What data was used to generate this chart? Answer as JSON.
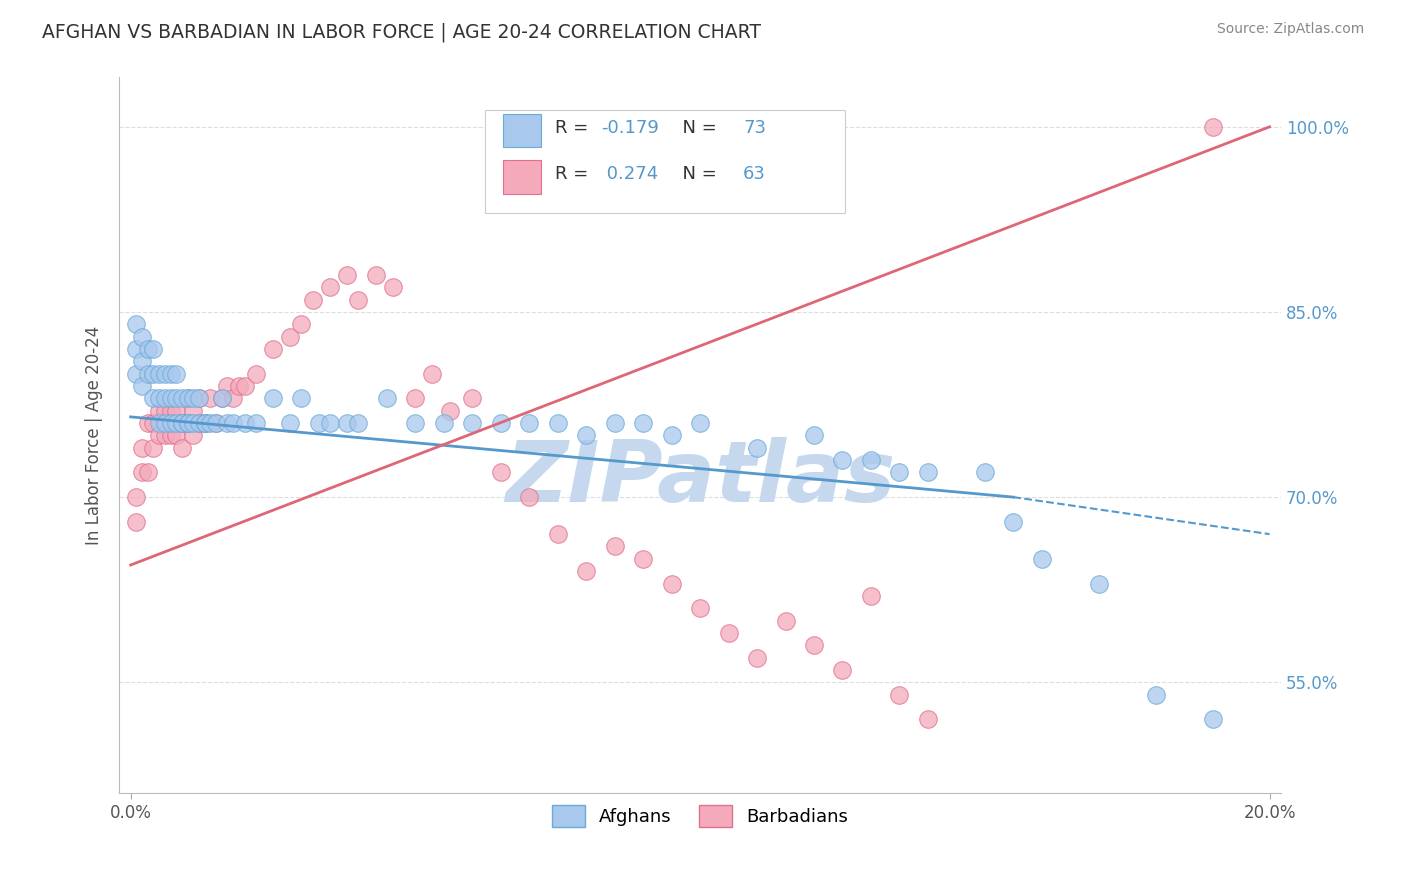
{
  "title": "AFGHAN VS BARBADIAN IN LABOR FORCE | AGE 20-24 CORRELATION CHART",
  "source": "Source: ZipAtlas.com",
  "ylabel": "In Labor Force | Age 20-24",
  "xlim": [
    -0.002,
    0.202
  ],
  "ylim": [
    0.46,
    1.04
  ],
  "xtick_positions": [
    0.0,
    0.2
  ],
  "xtick_labels": [
    "0.0%",
    "20.0%"
  ],
  "ytick_vals": [
    0.55,
    0.7,
    0.85,
    1.0
  ],
  "ytick_labels": [
    "55.0%",
    "70.0%",
    "85.0%",
    "100.0%"
  ],
  "R_afghan": -0.179,
  "N_afghan": 73,
  "R_barbadian": 0.274,
  "N_barbadian": 63,
  "afghan_fill": "#A8C8EE",
  "afghan_edge": "#6AAAD8",
  "barbadian_fill": "#F4AABB",
  "barbadian_edge": "#E07090",
  "line_afghan": "#5599CC",
  "line_barbadian": "#DD6677",
  "grid_color": "#DDDDDD",
  "title_color": "#333333",
  "source_color": "#888888",
  "ylabel_color": "#555555",
  "ytick_color": "#5599CC",
  "xtick_color": "#555555",
  "watermark": "ZIPatlas",
  "watermark_color": "#C5D8EE",
  "legend_text_color": "#333333",
  "legend_num_color": "#5599CC",
  "legend_box_edge": "#CCCCCC",
  "background": "#FFFFFF",
  "afghan_x": [
    0.001,
    0.001,
    0.001,
    0.002,
    0.002,
    0.002,
    0.003,
    0.003,
    0.004,
    0.004,
    0.004,
    0.005,
    0.005,
    0.005,
    0.006,
    0.006,
    0.006,
    0.007,
    0.007,
    0.007,
    0.008,
    0.008,
    0.008,
    0.009,
    0.009,
    0.009,
    0.01,
    0.01,
    0.01,
    0.011,
    0.011,
    0.012,
    0.012,
    0.013,
    0.013,
    0.014,
    0.015,
    0.016,
    0.017,
    0.018,
    0.02,
    0.022,
    0.025,
    0.028,
    0.03,
    0.033,
    0.035,
    0.038,
    0.04,
    0.045,
    0.05,
    0.055,
    0.06,
    0.065,
    0.07,
    0.075,
    0.08,
    0.085,
    0.09,
    0.095,
    0.1,
    0.11,
    0.12,
    0.125,
    0.13,
    0.135,
    0.14,
    0.15,
    0.155,
    0.16,
    0.17,
    0.18,
    0.19
  ],
  "afghan_y": [
    0.8,
    0.82,
    0.84,
    0.79,
    0.81,
    0.83,
    0.8,
    0.82,
    0.78,
    0.8,
    0.82,
    0.76,
    0.78,
    0.8,
    0.76,
    0.78,
    0.8,
    0.76,
    0.78,
    0.8,
    0.76,
    0.78,
    0.8,
    0.76,
    0.78,
    0.76,
    0.76,
    0.78,
    0.76,
    0.76,
    0.78,
    0.76,
    0.78,
    0.76,
    0.76,
    0.76,
    0.76,
    0.78,
    0.76,
    0.76,
    0.76,
    0.76,
    0.78,
    0.76,
    0.78,
    0.76,
    0.76,
    0.76,
    0.76,
    0.78,
    0.76,
    0.76,
    0.76,
    0.76,
    0.76,
    0.76,
    0.75,
    0.76,
    0.76,
    0.75,
    0.76,
    0.74,
    0.75,
    0.73,
    0.73,
    0.72,
    0.72,
    0.72,
    0.68,
    0.65,
    0.63,
    0.54,
    0.52
  ],
  "barbadian_x": [
    0.001,
    0.001,
    0.002,
    0.002,
    0.003,
    0.003,
    0.004,
    0.004,
    0.005,
    0.005,
    0.006,
    0.006,
    0.007,
    0.007,
    0.008,
    0.008,
    0.009,
    0.009,
    0.01,
    0.01,
    0.011,
    0.011,
    0.012,
    0.012,
    0.013,
    0.014,
    0.015,
    0.016,
    0.017,
    0.018,
    0.019,
    0.02,
    0.022,
    0.025,
    0.028,
    0.03,
    0.032,
    0.035,
    0.038,
    0.04,
    0.043,
    0.046,
    0.05,
    0.053,
    0.056,
    0.06,
    0.065,
    0.07,
    0.075,
    0.08,
    0.085,
    0.09,
    0.095,
    0.1,
    0.105,
    0.11,
    0.115,
    0.12,
    0.125,
    0.13,
    0.135,
    0.14,
    0.19
  ],
  "barbadian_y": [
    0.68,
    0.7,
    0.72,
    0.74,
    0.72,
    0.76,
    0.74,
    0.76,
    0.75,
    0.77,
    0.75,
    0.77,
    0.75,
    0.77,
    0.75,
    0.77,
    0.74,
    0.76,
    0.76,
    0.78,
    0.75,
    0.77,
    0.76,
    0.78,
    0.76,
    0.78,
    0.76,
    0.78,
    0.79,
    0.78,
    0.79,
    0.79,
    0.8,
    0.82,
    0.83,
    0.84,
    0.86,
    0.87,
    0.88,
    0.86,
    0.88,
    0.87,
    0.78,
    0.8,
    0.77,
    0.78,
    0.72,
    0.7,
    0.67,
    0.64,
    0.66,
    0.65,
    0.63,
    0.61,
    0.59,
    0.57,
    0.6,
    0.58,
    0.56,
    0.62,
    0.54,
    0.52,
    1.0
  ],
  "line_afg_x0": 0.0,
  "line_afg_y0": 0.765,
  "line_afg_x1": 0.155,
  "line_afg_y1": 0.7,
  "line_afg_xd": 0.2,
  "line_afg_yd": 0.67,
  "line_barb_x0": 0.0,
  "line_barb_y0": 0.645,
  "line_barb_x1": 0.2,
  "line_barb_y1": 1.0
}
